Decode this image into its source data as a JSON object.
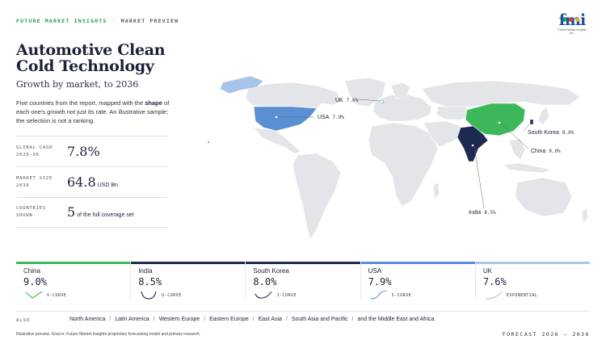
{
  "header": {
    "brand": "FUTURE MARKET INSIGHTS",
    "separator": "·",
    "section": "MARKET PREVIEW",
    "logo_text": "fmi",
    "logo_sub": "Future Market Insights Inc."
  },
  "title": "Automotive Clean Cold Technology",
  "subtitle": "Growth by market, to 2036",
  "description": {
    "part1": "Five countries from the report, mapped with the ",
    "bold": "shape",
    "part2": " of each one's growth not just its rate. An illustrative sample; the selection is not a ranking."
  },
  "stats": [
    {
      "label_line1": "GLOBAL CAGR",
      "label_line2": "2026-36",
      "value": "7.8%",
      "unit": ""
    },
    {
      "label_line1": "MARKET SIZE",
      "label_line2": "2036",
      "value": "64.8",
      "unit": "USD Bn"
    },
    {
      "label_line1": "COUNTRIES",
      "label_line2": "SHOWN",
      "value": "5",
      "unit": "of the full coverage set"
    }
  ],
  "map_labels": {
    "uk_name": "UK",
    "uk_val": "7.6%",
    "usa_name": "USA",
    "usa_val": "7.9%",
    "sk_name": "South Korea",
    "sk_val": "8.0%",
    "china_name": "China",
    "china_val": "9.0%",
    "india_name": "India",
    "india_val": "8.5%"
  },
  "cards": [
    {
      "name": "China",
      "value": "9.0%",
      "curve": "V-CURVE",
      "color": "#3cb85a"
    },
    {
      "name": "India",
      "value": "8.5%",
      "curve": "U-CURVE",
      "color": "#1e2b50"
    },
    {
      "name": "South Korea",
      "value": "8.0%",
      "curve": "J-CURVE",
      "color": "#1e2b50"
    },
    {
      "name": "USA",
      "value": "7.9%",
      "curve": "S-CURVE",
      "color": "#5b8fd4"
    },
    {
      "name": "UK",
      "value": "7.6%",
      "curve": "EXPONENTIAL",
      "color": "#a8c4ea"
    }
  ],
  "also": {
    "label": "ALSO",
    "regions": [
      "North America",
      "Latin America",
      "Western Europe",
      "Eastern Europe",
      "East Asia",
      "South Asia and Pacific",
      "and the Middle East and Africa."
    ]
  },
  "footer": "Illustrative preview. Source: Future Market Insights proprietary forecasting model and primary research.",
  "forecast": "FORECAST 2026 – 2036",
  "colors": {
    "china": "#3cb85a",
    "india": "#1e2b50",
    "usa": "#5b8fd4",
    "uk": "#a8c4ea",
    "land": "#e3e5e8",
    "brand_green": "#1f9a4a"
  }
}
